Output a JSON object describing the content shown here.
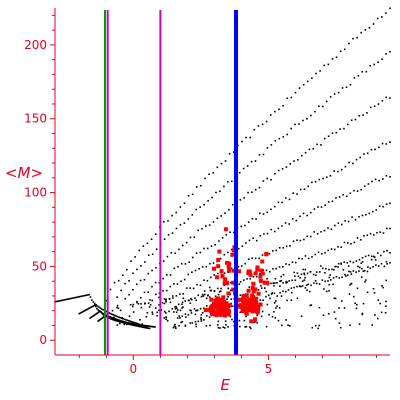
{
  "chart_data": {
    "type": "scatter",
    "xlabel": "E",
    "ylabel": "<M>",
    "xlim": [
      -2.9,
      9.5
    ],
    "ylim": [
      -10,
      225
    ],
    "grid": false,
    "legend": "none",
    "x_ticks": [
      0,
      5
    ],
    "y_ticks": [
      0,
      50,
      100,
      150,
      200
    ],
    "x_tick_labels": [
      "0",
      "5"
    ],
    "y_tick_labels": [
      "0",
      "50",
      "100",
      "150",
      "200"
    ],
    "vertical_lines": [
      {
        "x": -1.05,
        "color": "#009a00"
      },
      {
        "x": -0.95,
        "color": "#cc00cc"
      },
      {
        "x": 1.0,
        "color": "#cc00cc"
      },
      {
        "x": 3.8,
        "color": "#0000ff"
      }
    ],
    "colors": {
      "axis": "#e8001f",
      "black_points": "#000000",
      "red_points": "#ff0000"
    },
    "series": [
      {
        "color": "#000000",
        "marker": "dot",
        "bands": [
          {
            "x0": -1.0,
            "y0": 28,
            "x1": 9.5,
            "y1": 225
          },
          {
            "x0": -0.6,
            "y0": 30,
            "x1": 9.5,
            "y1": 195
          },
          {
            "x0": -0.3,
            "y0": 27,
            "x1": 9.5,
            "y1": 165
          },
          {
            "x0": 0.0,
            "y0": 24,
            "x1": 9.5,
            "y1": 135
          },
          {
            "x0": 0.3,
            "y0": 22,
            "x1": 9.5,
            "y1": 112
          },
          {
            "x0": 0.7,
            "y0": 20,
            "x1": 9.5,
            "y1": 92
          },
          {
            "x0": 1.2,
            "y0": 18,
            "x1": 9.5,
            "y1": 75
          },
          {
            "x0": 1.7,
            "y0": 15,
            "x1": 9.5,
            "y1": 60
          },
          {
            "x0": 2.3,
            "y0": 12,
            "x1": 9.5,
            "y1": 52
          }
        ],
        "curves": [
          {
            "x0": -2.9,
            "y0": 26,
            "xpeak": -1.6,
            "ypeak": 31,
            "x1": 0.2,
            "y1": 11
          },
          {
            "x0": -2.0,
            "y0": 18,
            "xpeak": -1.4,
            "ypeak": 24,
            "x1": 0.4,
            "y1": 9
          },
          {
            "x0": -1.6,
            "y0": 15,
            "xpeak": -1.2,
            "ypeak": 20,
            "x1": 0.6,
            "y1": 8
          },
          {
            "x0": -1.3,
            "y0": 13,
            "xpeak": -1.0,
            "ypeak": 17,
            "x1": 0.8,
            "y1": 9
          }
        ]
      },
      {
        "color": "#ff0000",
        "marker": "square",
        "clusters": [
          {
            "x": 3.2,
            "y": 22,
            "spread_x": 0.35,
            "spread_y": 6,
            "count": 70
          },
          {
            "x": 4.3,
            "y": 24,
            "spread_x": 0.3,
            "spread_y": 7,
            "count": 60
          },
          {
            "x": 3.5,
            "y": 45,
            "spread_x": 0.6,
            "spread_y": 20,
            "count": 30
          },
          {
            "x": 4.6,
            "y": 45,
            "spread_x": 0.4,
            "spread_y": 15,
            "count": 20
          }
        ]
      }
    ]
  }
}
